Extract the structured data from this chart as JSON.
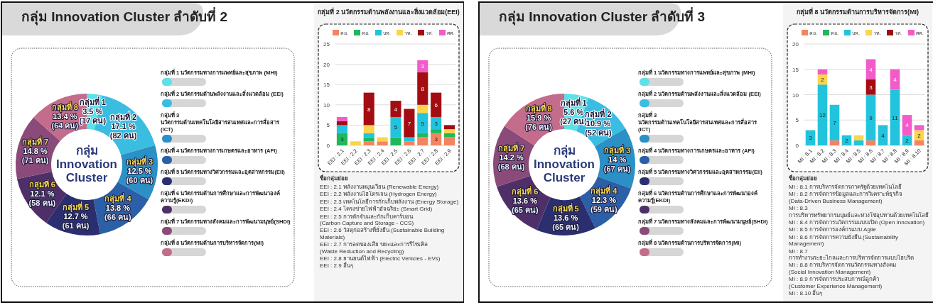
{
  "chart_data": [
    {
      "type": "donut",
      "title": "กลุ่ม Innovation Cluster ลำดับที่ 2",
      "subtitle": "กลุ่ม Innovation Cluster",
      "categories": [
        "กลุ่มที่ 1",
        "กลุ่มที่ 2",
        "กลุ่มที่ 3",
        "กลุ่มที่ 4",
        "กลุ่มที่ 5",
        "กลุ่มที่ 6",
        "กลุ่มที่ 7",
        "กลุ่มที่ 8"
      ],
      "values": [
        3.5,
        17.1,
        12.5,
        13.8,
        12.7,
        12.1,
        14.8,
        13.4
      ],
      "value_labels": [
        "3.5 %\n(17 คน)",
        "17.1 %\n(82 คน)",
        "12.5 %\n(60 คน)",
        "13.8 %\n(66 คน)",
        "12.7 %\n(61 คน)",
        "12.1 %\n(58 คน)",
        "14.8 %\n(71 คน)",
        "13.4 %\n(64 คน)"
      ],
      "colors": [
        "#5ee0e8",
        "#3bbde2",
        "#2a90c6",
        "#2b5fa8",
        "#2b2f70",
        "#4f2f68",
        "#8a4a7a",
        "#c46c8c"
      ],
      "annotations": [
        "กลุ่มที่ 1 นวัตกรรมทางการแพทย์และสุขภาพ (MHI)",
        "กลุ่มที่ 2 นวัตกรรมด้านพลังงานและสิ่งแวดล้อม (EEI)",
        "กลุ่มที่ 3 นวัตกรรมด้านเทคโนโลยีสารสนเทศและการสื่อสาร (ICT)",
        "กลุ่มที่ 4 นวัตกรรมทางการเกษตรและอาหาร (AFI)",
        "กลุ่มที่ 5 นวัตกรรมทางวิศวกรรมและอุตสาหกรรม(EII)",
        "กลุ่มที่ 6 นวัตกรรมด้านการศึกษาและการพัฒนาองค์ ความรู้(EKDI)",
        "กลุ่มที่ 7 นวัตกรรมทางสังคมและการพัฒนามนุษย์(SHDI)",
        "กลุ่มที่ 8 นวัตกรรมด้านการบริหารจัดการ(MI)"
      ]
    },
    {
      "type": "bar",
      "stacked": true,
      "grid": "y",
      "legend": "top",
      "title": "กลุ่มที่ 2 นวัตกรรมด้านพลังงานและสิ่งแวดล้อม(EEI)",
      "categories": [
        "EEI : 2.1",
        "EEI : 2.2",
        "EEI : 2.3",
        "EEI : 2.4",
        "EEI : 2.5",
        "EEI : 2.6",
        "EEI : 2.7",
        "EEI : 2.8",
        "EEI : 2.9"
      ],
      "ylim": [
        0,
        25
      ],
      "yticks": [
        0,
        5,
        10,
        15,
        20,
        25
      ],
      "series": [
        {
          "name": "คอ.",
          "color": "#f4845f",
          "values": [
            0,
            0,
            1,
            1,
            0,
            1,
            2,
            3,
            2
          ],
          "value_labels": [
            null,
            null,
            null,
            null,
            null,
            null,
            null,
            "3",
            null
          ]
        },
        {
          "name": "ทอ.",
          "color": "#1fb85a",
          "values": [
            3,
            0,
            1,
            0,
            2,
            0,
            1,
            1,
            1
          ],
          "value_labels": [
            "3",
            null,
            null,
            null,
            null,
            null,
            null,
            null,
            null
          ]
        },
        {
          "name": "บท.",
          "color": "#21c4dc",
          "values": [
            2,
            0,
            1,
            0,
            5,
            1,
            5,
            3,
            0
          ],
          "value_labels": [
            null,
            null,
            null,
            null,
            "5",
            null,
            "5",
            "3",
            null
          ]
        },
        {
          "name": "วท.",
          "color": "#fbd54a",
          "values": [
            0,
            1,
            2,
            1,
            0,
            0,
            2,
            0,
            1
          ],
          "value_labels": [
            null,
            null,
            null,
            null,
            null,
            null,
            null,
            null,
            null
          ]
        },
        {
          "name": "วส.",
          "color": "#a30d12",
          "values": [
            1,
            0,
            8,
            0,
            4,
            7,
            8,
            6,
            1
          ],
          "value_labels": [
            null,
            null,
            "8",
            null,
            "4",
            "7",
            "8",
            "6",
            null
          ]
        },
        {
          "name": "ศศ.",
          "color": "#f35bc9",
          "values": [
            1,
            0,
            0,
            0,
            0,
            0,
            3,
            0,
            0
          ],
          "value_labels": [
            null,
            null,
            null,
            null,
            null,
            null,
            "3",
            null,
            null
          ]
        }
      ],
      "annotations": [
        "ชื่อกลุ่มย่อย",
        "EEI : 2.1 พลังงานหมุนเวียน (Renewable Energy)",
        "EEI : 2.2 พลังงานไฮโดรเจน (Hydrogen Energy)",
        "EEI : 2.3 เทคโนโลยีการกักเก็บพลังงาน (Energy Storage)",
        "EEI : 2.4 โครงข่ายไฟฟ้าอัจฉริยะ (Smart Grid)",
        "EEI : 2.5 การดักจับและกักเก็บคาร์บอน\n(Carbon Capture and Storage - CCS)",
        "EEI : 2.6 วัสดุก่อสร้างที่ยั่งยืน (Sustainable Building Materials)",
        "EEI : 2.7 การลดของเสีย ขยะและการรีไซเคิล\n(Waste Reduction and Recycling)",
        "EEI : 2.8 ยานยนต์ไฟฟ้า (Electric Vehicles - EVs)",
        "EEI : 2.9 อื่นๆ"
      ]
    },
    {
      "type": "donut",
      "title": "กลุ่ม Innovation Cluster ลำดับที่ 3",
      "subtitle": "กลุ่ม Innovation Cluster",
      "categories": [
        "กลุ่มที่ 1",
        "กลุ่มที่ 2",
        "กลุ่มที่ 3",
        "กลุ่มที่ 4",
        "กลุ่มที่ 5",
        "กลุ่มที่ 6",
        "กลุ่มที่ 7",
        "กลุ่มที่ 8"
      ],
      "values": [
        5.6,
        10.9,
        14,
        12.3,
        13.6,
        13.6,
        14.2,
        15.9
      ],
      "value_labels": [
        "5.6 %\n(27 คน)",
        "10.9 %\n(52 คน)",
        "14 %\n(67 คน)",
        "12.3 %\n(59 คน)",
        "13.6 %\n(65 คน)",
        "13.6 %\n(65 คน)",
        "14.2 %\n(68 คน)",
        "15.9 %\n(76 คน)"
      ],
      "colors": [
        "#5ee0e8",
        "#3bbde2",
        "#2a90c6",
        "#2b5fa8",
        "#2b2f70",
        "#4f2f68",
        "#8a4a7a",
        "#c46c8c"
      ],
      "annotations": [
        "กลุ่มที่ 1 นวัตกรรมทางการแพทย์และสุขภาพ (MHI)",
        "กลุ่มที่ 2 นวัตกรรมด้านพลังงานและสิ่งแวดล้อม (EEI)",
        "กลุ่มที่ 3 นวัตกรรมด้านเทคโนโลยีสารสนเทศและการสื่อสาร (ICT)",
        "กลุ่มที่ 4 นวัตกรรมทางการเกษตรและอาหาร (AFI)",
        "กลุ่มที่ 5 นวัตกรรมทางวิศวกรรมและอุตสาหกรรม(EII)",
        "กลุ่มที่ 6 นวัตกรรมด้านการศึกษาและการพัฒนาองค์ ความรู้(EKDI)",
        "กลุ่มที่ 7 นวัตกรรมทางสังคมและการพัฒนามนุษย์(SHDI)",
        "กลุ่มที่ 8 นวัตกรรมด้านการบริหารจัดการ(MI)"
      ]
    },
    {
      "type": "bar",
      "stacked": true,
      "grid": "y",
      "legend": "top",
      "title": "กลุ่มที่ 8 นวัตกรรมด้านการบริหารจัดการ(MI)",
      "categories": [
        "MI : 8.1",
        "MI : 8.2",
        "MI : 8.3",
        "MI : 8.4",
        "MI : 8.5",
        "MI : 8.6",
        "MI : 8.7",
        "MI : 8.8",
        "MI : 8.9",
        "MI : 8.10"
      ],
      "ylim": [
        0,
        20
      ],
      "yticks": [
        0,
        5,
        10,
        15,
        20
      ],
      "series": [
        {
          "name": "คอ.",
          "color": "#f4845f",
          "values": [
            0,
            0,
            1,
            0,
            0,
            1,
            0,
            0,
            0,
            1
          ],
          "value_labels": [
            null,
            null,
            null,
            null,
            null,
            null,
            null,
            null,
            null,
            null
          ]
        },
        {
          "name": "ทอ.",
          "color": "#1fb85a",
          "values": [
            0,
            0,
            0,
            0,
            0,
            0,
            0,
            0,
            0,
            0
          ],
          "value_labels": [
            null,
            null,
            null,
            null,
            null,
            null,
            null,
            null,
            null,
            null
          ]
        },
        {
          "name": "บท.",
          "color": "#21c4dc",
          "values": [
            3,
            12,
            7,
            2,
            1,
            9,
            4,
            11,
            2,
            0
          ],
          "value_labels": [
            "3",
            "12",
            "7",
            "2",
            null,
            "9",
            "4",
            "11",
            "2",
            null
          ]
        },
        {
          "name": "วท.",
          "color": "#fbd54a",
          "values": [
            0,
            2,
            0,
            0,
            1,
            0,
            0,
            0,
            0,
            2
          ],
          "value_labels": [
            null,
            "2",
            null,
            null,
            null,
            null,
            null,
            null,
            null,
            "2"
          ]
        },
        {
          "name": "วส.",
          "color": "#a30d12",
          "values": [
            0,
            0,
            0,
            0,
            0,
            3,
            0,
            0,
            0,
            0
          ],
          "value_labels": [
            null,
            null,
            null,
            null,
            null,
            "3",
            null,
            null,
            null,
            null
          ]
        },
        {
          "name": "ศศ.",
          "color": "#f35bc9",
          "values": [
            0,
            1,
            0,
            0,
            0,
            4,
            0,
            4,
            4,
            1
          ],
          "value_labels": [
            null,
            null,
            null,
            null,
            null,
            "4",
            null,
            "4",
            "4",
            null
          ]
        }
      ],
      "annotations": [
        "ชื่อกลุ่มย่อย",
        "MI : 8.1 การบริหารจัดการภาครัฐด้วยเทคโนโลยี",
        "MI : 8.2 การจัดการข้อมูลและการวิเคราะห์ธุรกิจ\n(Data-Driven Business Management)",
        "MI : 8.3 การบริหารทรัพยากรมนุษย์และห่วงโซ่อุปทานด้วยเทคโนโลยี",
        "MI : 8.4 การจัดการนวัตกรรมแบบเปิด (Open Innovation)",
        "MI : 8.5 การจัดการองค์กรแบบ Agile",
        "MI : 8.6 การจัดการความยั่งยืน (Sustainability Management)",
        "MI : 8.7 การทำงานระยะไกลและการบริหารจัดการแบบไฮบริด",
        "MI : 8.8 การบริหารจัดการนวัตกรรมทางสังคม\n(Social Innovation Management)",
        "MI : 8.9 การจัดการประสบการณ์ลูกค้า\n(Customer Experience Management)",
        "MI : 8.10 อื่นๆ"
      ]
    }
  ]
}
